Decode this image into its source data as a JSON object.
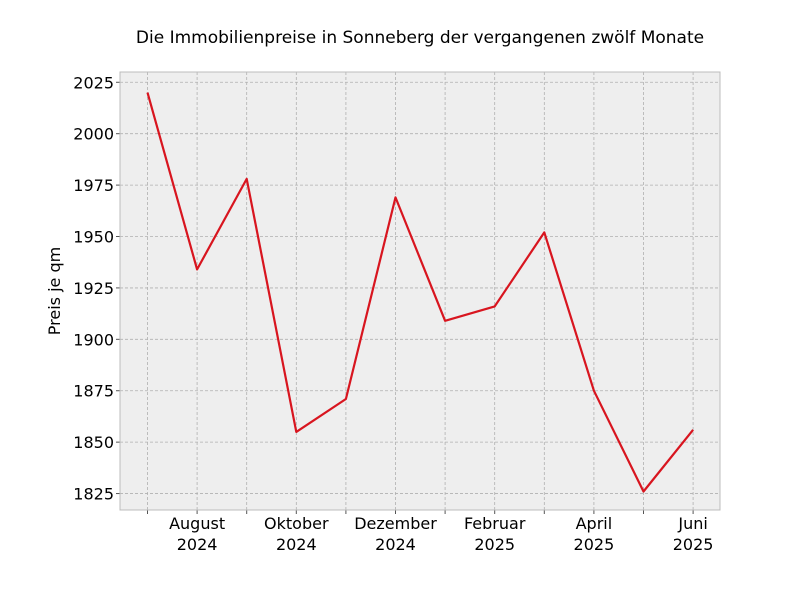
{
  "chart_data": {
    "type": "line",
    "title": "Die Immobilienpreise in Sonneberg der vergangenen zwölf Monate",
    "xlabel": "",
    "ylabel": "Preis je qm",
    "x": [
      "2024-07",
      "2024-08",
      "2024-09",
      "2024-10",
      "2024-11",
      "2024-12",
      "2025-01",
      "2025-02",
      "2025-03",
      "2025-04",
      "2025-05",
      "2025-06"
    ],
    "series": [
      {
        "values": [
          2020,
          1934,
          1978,
          1855,
          1871,
          1969,
          1909,
          1916,
          1952,
          1875,
          1826,
          1856
        ]
      }
    ],
    "ylim": [
      1817,
      2030
    ],
    "y_ticks": [
      "1825",
      "1850",
      "1875",
      "1900",
      "1925",
      "1950",
      "1975",
      "2000",
      "2025"
    ],
    "x_tick_labels": [
      {
        "month": "August",
        "year": "2024"
      },
      {
        "month": "Oktober",
        "year": "2024"
      },
      {
        "month": "Dezember",
        "year": "2024"
      },
      {
        "month": "Februar",
        "year": "2025"
      },
      {
        "month": "April",
        "year": "2025"
      },
      {
        "month": "Juni",
        "year": "2025"
      }
    ],
    "grid": true,
    "line_color": "#d8151f"
  }
}
